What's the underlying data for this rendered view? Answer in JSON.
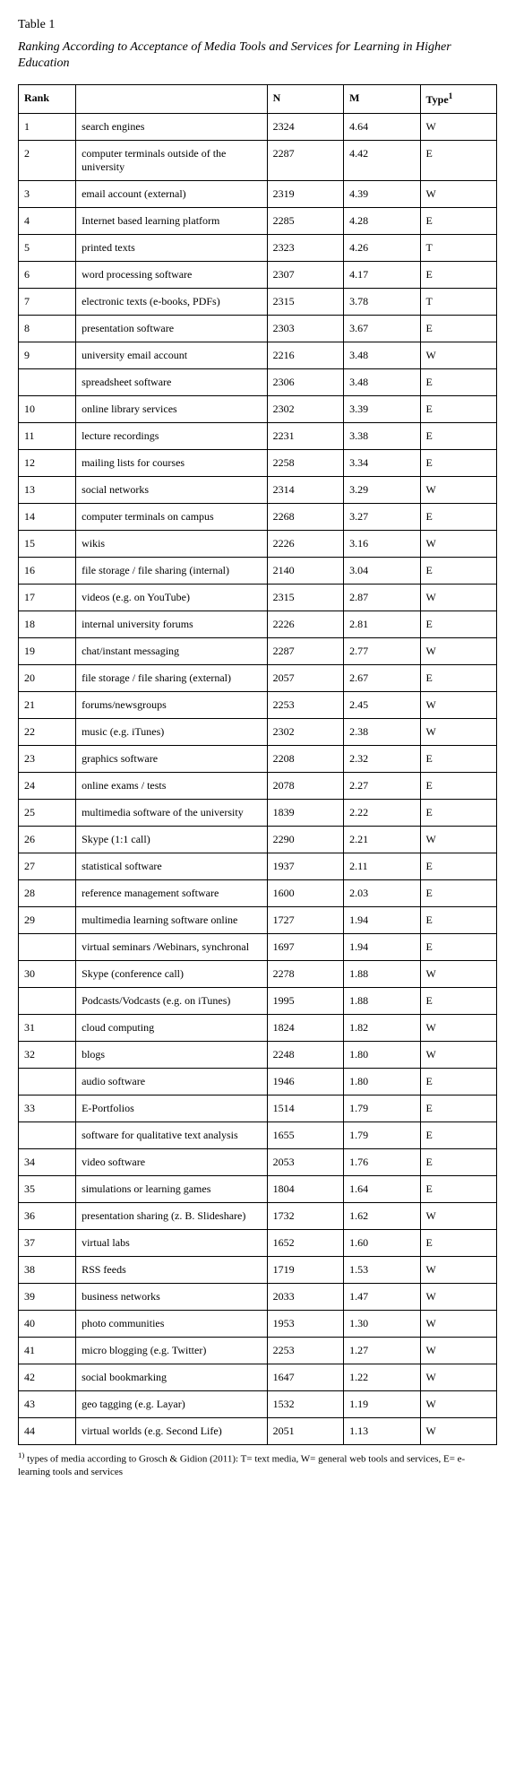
{
  "table_label": "Table 1",
  "title": "Ranking According to Acceptance of Media Tools and Services for Learning in Higher Education",
  "columns": [
    "Rank",
    "",
    "N",
    "M",
    "Type"
  ],
  "type_sup": "1",
  "rows": [
    [
      "1",
      "search engines",
      "2324",
      "4.64",
      "W"
    ],
    [
      "2",
      "computer terminals outside of the university",
      "2287",
      "4.42",
      "E"
    ],
    [
      "3",
      "email account (external)",
      "2319",
      "4.39",
      "W"
    ],
    [
      "4",
      "Internet based learning platform",
      "2285",
      "4.28",
      "E"
    ],
    [
      "5",
      "printed texts",
      "2323",
      "4.26",
      "T"
    ],
    [
      "6",
      "word processing software",
      "2307",
      "4.17",
      "E"
    ],
    [
      "7",
      "electronic texts (e-books, PDFs)",
      "2315",
      "3.78",
      "T"
    ],
    [
      "8",
      "presentation software",
      "2303",
      "3.67",
      "E"
    ],
    [
      "9",
      "university email account",
      "2216",
      "3.48",
      "W"
    ],
    [
      "",
      "spreadsheet software",
      "2306",
      "3.48",
      "E"
    ],
    [
      "10",
      "online library services",
      "2302",
      "3.39",
      "E"
    ],
    [
      "11",
      "lecture recordings",
      "2231",
      "3.38",
      "E"
    ],
    [
      "12",
      "mailing lists for  courses",
      "2258",
      "3.34",
      "E"
    ],
    [
      "13",
      "social networks",
      "2314",
      "3.29",
      "W"
    ],
    [
      "14",
      "computer terminals on campus",
      "2268",
      "3.27",
      "E"
    ],
    [
      "15",
      "wikis",
      "2226",
      "3.16",
      "W"
    ],
    [
      "16",
      "file storage / file sharing (internal)",
      "2140",
      "3.04",
      "E"
    ],
    [
      "17",
      "videos (e.g. on YouTube)",
      "2315",
      "2.87",
      "W"
    ],
    [
      "18",
      "internal university forums",
      "2226",
      "2.81",
      "E"
    ],
    [
      "19",
      "chat/instant messaging",
      "2287",
      "2.77",
      "W"
    ],
    [
      "20",
      "file storage / file sharing (external)",
      "2057",
      "2.67",
      "E"
    ],
    [
      "21",
      "forums/newsgroups",
      "2253",
      "2.45",
      "W"
    ],
    [
      "22",
      "music (e.g. iTunes)",
      "2302",
      "2.38",
      "W"
    ],
    [
      "23",
      "graphics software",
      "2208",
      "2.32",
      "E"
    ],
    [
      "24",
      "online exams / tests",
      "2078",
      "2.27",
      "E"
    ],
    [
      "25",
      "multimedia software of the university",
      "1839",
      "2.22",
      "E"
    ],
    [
      "26",
      "Skype (1:1 call)",
      "2290",
      "2.21",
      "W"
    ],
    [
      "27",
      "statistical software",
      "1937",
      "2.11",
      "E"
    ],
    [
      "28",
      "reference management software",
      "1600",
      "2.03",
      "E"
    ],
    [
      "29",
      "multimedia learning software online",
      "1727",
      "1.94",
      "E"
    ],
    [
      "",
      "virtual seminars /Webinars, synchronal",
      "1697",
      "1.94",
      "E"
    ],
    [
      "30",
      "Skype (conference call)",
      "2278",
      "1.88",
      "W"
    ],
    [
      "",
      "Podcasts/Vodcasts (e.g. on iTunes)",
      "1995",
      "1.88",
      "E"
    ],
    [
      "31",
      "cloud computing",
      "1824",
      "1.82",
      "W"
    ],
    [
      "32",
      "blogs",
      "2248",
      "1.80",
      "W"
    ],
    [
      "",
      "audio software",
      "1946",
      "1.80",
      "E"
    ],
    [
      "33",
      "E-Portfolios",
      "1514",
      "1.79",
      "E"
    ],
    [
      "",
      "software for qualitative text analysis",
      "1655",
      "1.79",
      "E"
    ],
    [
      "34",
      "video software",
      "2053",
      "1.76",
      "E"
    ],
    [
      "35",
      "simulations or learning games",
      "1804",
      "1.64",
      "E"
    ],
    [
      "36",
      "presentation sharing (z. B. Slideshare)",
      "1732",
      "1.62",
      "W"
    ],
    [
      "37",
      "virtual labs",
      "1652",
      "1.60",
      "E"
    ],
    [
      "38",
      "RSS feeds",
      "1719",
      "1.53",
      "W"
    ],
    [
      "39",
      "business networks",
      "2033",
      "1.47",
      "W"
    ],
    [
      "40",
      "photo communities",
      "1953",
      "1.30",
      "W"
    ],
    [
      "41",
      "micro blogging (e.g. Twitter)",
      "2253",
      "1.27",
      "W"
    ],
    [
      "42",
      "social bookmarking",
      "1647",
      "1.22",
      "W"
    ],
    [
      "43",
      "geo tagging (e.g. Layar)",
      "1532",
      "1.19",
      "W"
    ],
    [
      "44",
      "virtual worlds (e.g. Second Life)",
      "2051",
      "1.13",
      "W"
    ]
  ],
  "footnote_marker": "1)",
  "footnote": "types of media according to Grosch & Gidion (2011): T= text media, W= general web tools and services, E= e-learning tools and services"
}
